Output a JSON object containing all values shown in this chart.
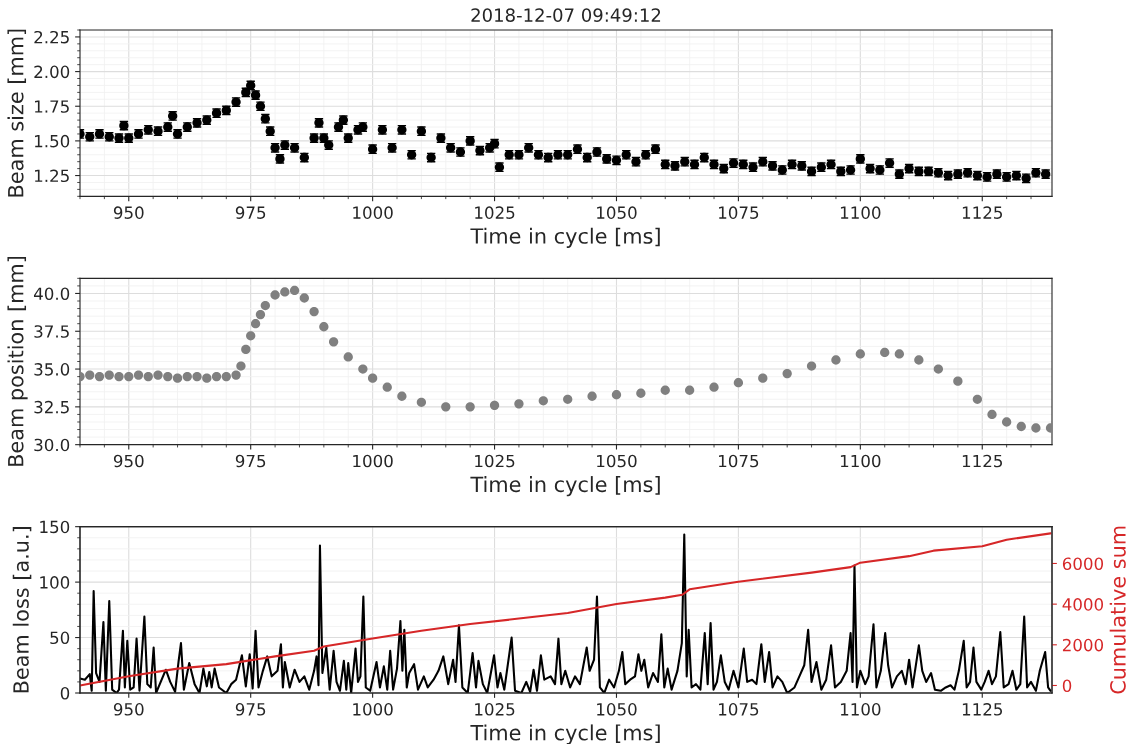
{
  "chart_data": [
    {
      "type": "scatter",
      "title": "2018-12-07 09:49:12",
      "xlabel": "Time in cycle [ms]",
      "ylabel": "Beam size [mm]",
      "xlim": [
        940,
        1139.3
      ],
      "ylim": [
        1.1,
        2.3
      ],
      "xticks": [
        950,
        975,
        1000,
        1025,
        1050,
        1075,
        1100,
        1125
      ],
      "yticks": [
        1.25,
        {
          "value": 1.5,
          "label": "1.50"
        },
        1.75,
        {
          "value": 2,
          "label": "2.00"
        },
        2.25
      ],
      "grid": true,
      "marker": "circle",
      "series": [
        {
          "color": "#000000",
          "x": [
            940,
            942,
            944,
            946,
            948,
            949,
            950,
            952,
            954,
            956,
            958,
            959,
            960,
            962,
            964,
            966,
            968,
            970,
            972,
            974,
            975,
            976,
            977,
            978,
            979,
            980,
            981,
            982,
            984,
            986,
            988,
            989,
            990,
            991,
            993,
            994,
            995,
            997,
            998,
            1000,
            1002,
            1004,
            1006,
            1008,
            1010,
            1012,
            1014,
            1016,
            1018,
            1020,
            1022,
            1024,
            1025,
            1026,
            1028,
            1030,
            1032,
            1034,
            1036,
            1038,
            1040,
            1042,
            1044,
            1046,
            1048,
            1050,
            1052,
            1054,
            1056,
            1058,
            1060,
            1062,
            1064,
            1066,
            1068,
            1070,
            1072,
            1074,
            1076,
            1078,
            1080,
            1082,
            1084,
            1086,
            1088,
            1090,
            1092,
            1094,
            1096,
            1098,
            1100,
            1102,
            1104,
            1106,
            1108,
            1110,
            1112,
            1114,
            1116,
            1118,
            1120,
            1122,
            1124,
            1126,
            1128,
            1130,
            1132,
            1134,
            1136,
            1138
          ],
          "values": [
            1.55,
            1.53,
            1.55,
            1.53,
            1.52,
            1.61,
            1.52,
            1.55,
            1.58,
            1.57,
            1.6,
            1.68,
            1.55,
            1.6,
            1.63,
            1.65,
            1.7,
            1.72,
            1.78,
            1.85,
            1.9,
            1.83,
            1.75,
            1.66,
            1.57,
            1.45,
            1.37,
            1.47,
            1.45,
            1.38,
            1.52,
            1.63,
            1.52,
            1.47,
            1.6,
            1.65,
            1.52,
            1.58,
            1.6,
            1.44,
            1.58,
            1.45,
            1.58,
            1.4,
            1.57,
            1.38,
            1.52,
            1.45,
            1.42,
            1.5,
            1.43,
            1.45,
            1.48,
            1.31,
            1.4,
            1.4,
            1.45,
            1.4,
            1.38,
            1.4,
            1.4,
            1.44,
            1.38,
            1.42,
            1.37,
            1.36,
            1.4,
            1.35,
            1.4,
            1.44,
            1.33,
            1.32,
            1.35,
            1.33,
            1.38,
            1.33,
            1.3,
            1.34,
            1.33,
            1.31,
            1.35,
            1.32,
            1.29,
            1.33,
            1.32,
            1.28,
            1.31,
            1.33,
            1.28,
            1.29,
            1.37,
            1.3,
            1.29,
            1.34,
            1.26,
            1.3,
            1.28,
            1.28,
            1.27,
            1.25,
            1.26,
            1.27,
            1.25,
            1.24,
            1.26,
            1.24,
            1.25,
            1.23,
            1.27,
            1.26
          ],
          "errors": [
            0.03,
            0.03,
            0.03,
            0.03,
            0.03,
            0.03,
            0.03,
            0.03,
            0.03,
            0.03,
            0.03,
            0.03,
            0.03,
            0.03,
            0.03,
            0.03,
            0.03,
            0.03,
            0.03,
            0.03,
            0.03,
            0.03,
            0.03,
            0.03,
            0.03,
            0.03,
            0.03,
            0.03,
            0.03,
            0.03,
            0.03,
            0.03,
            0.03,
            0.03,
            0.03,
            0.03,
            0.03,
            0.03,
            0.03,
            0.03,
            0.03,
            0.03,
            0.03,
            0.03,
            0.03,
            0.03,
            0.03,
            0.03,
            0.03,
            0.03,
            0.03,
            0.03,
            0.03,
            0.03,
            0.03,
            0.03,
            0.03,
            0.03,
            0.03,
            0.03,
            0.03,
            0.03,
            0.03,
            0.03,
            0.03,
            0.03,
            0.03,
            0.03,
            0.03,
            0.03,
            0.03,
            0.03,
            0.03,
            0.03,
            0.03,
            0.03,
            0.03,
            0.03,
            0.03,
            0.03,
            0.03,
            0.03,
            0.03,
            0.03,
            0.03,
            0.03,
            0.03,
            0.03,
            0.03,
            0.03,
            0.03,
            0.03,
            0.03,
            0.03,
            0.03,
            0.03,
            0.03,
            0.03,
            0.03,
            0.03,
            0.03,
            0.03,
            0.03,
            0.03,
            0.03,
            0.03,
            0.03,
            0.03,
            0.03,
            0.03
          ]
        }
      ]
    },
    {
      "type": "scatter",
      "xlabel": "Time in cycle [ms]",
      "ylabel": "Beam position [mm]",
      "xlim": [
        940,
        1139.3
      ],
      "ylim": [
        30,
        41
      ],
      "xticks": [
        950,
        975,
        1000,
        1025,
        1050,
        1075,
        1100,
        1125
      ],
      "yticks": [
        {
          "value": 30,
          "label": "30.0"
        },
        32.5,
        {
          "value": 35,
          "label": "35.0"
        },
        37.5,
        {
          "value": 40,
          "label": "40.0"
        }
      ],
      "grid": true,
      "marker": "circle",
      "series": [
        {
          "color": "#808080",
          "x": [
            940,
            942,
            944,
            946,
            948,
            950,
            952,
            954,
            956,
            958,
            960,
            962,
            964,
            966,
            968,
            970,
            972,
            973,
            974,
            975,
            976,
            977,
            978,
            980,
            982,
            984,
            986,
            988,
            990,
            992,
            995,
            998,
            1000,
            1003,
            1006,
            1010,
            1015,
            1020,
            1025,
            1030,
            1035,
            1040,
            1045,
            1050,
            1055,
            1060,
            1065,
            1070,
            1075,
            1080,
            1085,
            1090,
            1095,
            1100,
            1105,
            1108,
            1112,
            1116,
            1120,
            1124,
            1127,
            1130,
            1133,
            1136,
            1139
          ],
          "values": [
            34.5,
            34.6,
            34.5,
            34.6,
            34.5,
            34.5,
            34.6,
            34.5,
            34.6,
            34.5,
            34.4,
            34.5,
            34.5,
            34.4,
            34.5,
            34.5,
            34.6,
            35.2,
            36.3,
            37.2,
            38.0,
            38.6,
            39.2,
            39.9,
            40.1,
            40.2,
            39.7,
            38.8,
            37.8,
            36.8,
            35.8,
            35.0,
            34.4,
            33.8,
            33.2,
            32.8,
            32.5,
            32.5,
            32.6,
            32.7,
            32.9,
            33.0,
            33.2,
            33.3,
            33.4,
            33.6,
            33.6,
            33.8,
            34.1,
            34.4,
            34.7,
            35.2,
            35.6,
            36.0,
            36.1,
            36.0,
            35.6,
            35.0,
            34.2,
            33.0,
            32.0,
            31.5,
            31.2,
            31.1,
            31.1
          ]
        }
      ]
    },
    {
      "type": "line",
      "xlabel": "Time in cycle [ms]",
      "ylabel": "Beam loss [a.u.]",
      "y2label": "Cumulative sum",
      "xlim": [
        940,
        1139.3
      ],
      "ylim": [
        0,
        150
      ],
      "y2lim": [
        -370,
        7810
      ],
      "xticks": [
        950,
        975,
        1000,
        1025,
        1050,
        1075,
        1100,
        1125
      ],
      "yticks": [
        0,
        50,
        100,
        150
      ],
      "y2ticks": [
        0,
        2000,
        4000,
        6000
      ],
      "grid": true,
      "series": [
        {
          "color": "#000000",
          "x": [
            940,
            941,
            942,
            942.4,
            942.8,
            943.3,
            944,
            944.8,
            945.3,
            946,
            946.6,
            947.5,
            948,
            948.8,
            949.2,
            949.7,
            950.3,
            951,
            951.6,
            952.2,
            953.2,
            953.8,
            954.5,
            955.1,
            955.6,
            957.6,
            958.5,
            959.5,
            960.2,
            960.7,
            961.3,
            962.4,
            963.5,
            964.5,
            965.3,
            966,
            966.5,
            967,
            967.6,
            968.5,
            970,
            971,
            972,
            973.2,
            974,
            974.8,
            975.4,
            976,
            976.6,
            977.5,
            978.4,
            979.3,
            980.5,
            981.2,
            981.6,
            982,
            983,
            984,
            985,
            986,
            987,
            988,
            988.5,
            988.9,
            989.2,
            989.7,
            990.5,
            991.2,
            992,
            992.6,
            993.3,
            994.1,
            994.6,
            995,
            995.6,
            996.5,
            997,
            997.5,
            998.1,
            998.6,
            999.5,
            1000.8,
            1001.5,
            1002.3,
            1003,
            1003.6,
            1004.2,
            1005,
            1005.7,
            1006.1,
            1006.5,
            1007,
            1007.5,
            1008.5,
            1009.3,
            1010.5,
            1011.3,
            1012.5,
            1013.5,
            1014.5,
            1015.5,
            1016.5,
            1017,
            1017.7,
            1018.4,
            1019.5,
            1020.5,
            1021.2,
            1021.7,
            1022.6,
            1023.5,
            1024.9,
            1025.6,
            1026.2,
            1027,
            1028.5,
            1029.2,
            1030.5,
            1031.5,
            1032.3,
            1033,
            1033.7,
            1034.5,
            1035.2,
            1036.5,
            1037.4,
            1038.1,
            1038.7,
            1039.5,
            1040.5,
            1041.5,
            1042.5,
            1043.9,
            1044.5,
            1045.4,
            1046,
            1046.6,
            1047.5,
            1048.5,
            1049.5,
            1050.5,
            1051.2,
            1051.8,
            1052.8,
            1053.8,
            1054.5,
            1055.1,
            1055.7,
            1056.5,
            1057.5,
            1058.5,
            1059.2,
            1059.8,
            1060.5,
            1061.3,
            1062.5,
            1063.4,
            1063.9,
            1064.4,
            1064.8,
            1065.4,
            1066.3,
            1067.2,
            1068.1,
            1068.7,
            1069.3,
            1069.9,
            1070.6,
            1071.4,
            1072.2,
            1073,
            1074,
            1075,
            1076.1,
            1076.8,
            1077.8,
            1078.7,
            1079.7,
            1080.4,
            1081.3,
            1082,
            1083,
            1084,
            1085,
            1086.5,
            1087.5,
            1088.5,
            1089.3,
            1090,
            1091,
            1092,
            1093,
            1094,
            1094.8,
            1096,
            1097.2,
            1098,
            1098.4,
            1098.8,
            1099.3,
            1100,
            1101,
            1101.7,
            1102.7,
            1103.3,
            1104.2,
            1105.1,
            1105.7,
            1106.5,
            1107.5,
            1108.5,
            1109.3,
            1110,
            1110.7,
            1112,
            1112.7,
            1113.5,
            1114.5,
            1115.3,
            1116.5,
            1117.5,
            1118.5,
            1119.3,
            1120.2,
            1121.2,
            1121.8,
            1122.5,
            1123.2,
            1123.8,
            1124.8,
            1125.5,
            1126.3,
            1127,
            1127.8,
            1128.7,
            1129.4,
            1130.4,
            1131.2,
            1132,
            1132.8,
            1133.6,
            1134.2,
            1135,
            1136,
            1136.8,
            1137.9,
            1138.5,
            1139
          ],
          "values": [
            13,
            12,
            17,
            2,
            92,
            18,
            10,
            64,
            2,
            83,
            3,
            0,
            3,
            56,
            5,
            47,
            3,
            5,
            49,
            2,
            69,
            8,
            5,
            41,
            0,
            21,
            10,
            1,
            28,
            45,
            3,
            27,
            8,
            0,
            22,
            6,
            19,
            5,
            22,
            5,
            0,
            8,
            12,
            34,
            6,
            35,
            4,
            56,
            5,
            20,
            33,
            15,
            20,
            44,
            5,
            28,
            5,
            21,
            10,
            15,
            3,
            20,
            33,
            7,
            133,
            18,
            41,
            3,
            38,
            10,
            2,
            29,
            3,
            27,
            0,
            40,
            10,
            15,
            87,
            5,
            2,
            28,
            5,
            24,
            3,
            38,
            3,
            22,
            65,
            20,
            57,
            5,
            18,
            26,
            3,
            15,
            5,
            12,
            20,
            33,
            8,
            30,
            10,
            61,
            5,
            0,
            36,
            5,
            29,
            8,
            0,
            34,
            5,
            18,
            3,
            50,
            2,
            0,
            10,
            1,
            21,
            2,
            34,
            12,
            15,
            8,
            49,
            8,
            20,
            5,
            15,
            8,
            41,
            20,
            30,
            87,
            5,
            0,
            12,
            5,
            20,
            37,
            8,
            12,
            15,
            35,
            20,
            30,
            5,
            18,
            10,
            53,
            5,
            22,
            3,
            20,
            45,
            143,
            15,
            57,
            5,
            8,
            3,
            54,
            8,
            63,
            3,
            10,
            34,
            10,
            3,
            20,
            5,
            40,
            10,
            12,
            8,
            44,
            10,
            37,
            5,
            15,
            10,
            0,
            5,
            15,
            25,
            57,
            10,
            28,
            3,
            12,
            43,
            5,
            10,
            20,
            54,
            10,
            115,
            5,
            20,
            8,
            15,
            62,
            5,
            20,
            54,
            25,
            5,
            15,
            20,
            8,
            30,
            5,
            43,
            20,
            10,
            18,
            3,
            2,
            5,
            7,
            3,
            20,
            47,
            5,
            10,
            41,
            10,
            3,
            10,
            20,
            8,
            15,
            55,
            5,
            8,
            20,
            3,
            8,
            69,
            5,
            10,
            2,
            20,
            37,
            5,
            2
          ]
        },
        {
          "color": "#d62728",
          "axis": "y2",
          "x": [
            940,
            950,
            960,
            970,
            980,
            988,
            990,
            1000,
            1010,
            1020,
            1030,
            1040,
            1050,
            1060,
            1063.5,
            1065,
            1075,
            1090,
            1098,
            1100,
            1110,
            1115,
            1125,
            1130,
            1139
          ],
          "values": [
            0,
            450,
            830,
            1050,
            1430,
            1710,
            1920,
            2310,
            2690,
            3020,
            3290,
            3560,
            4010,
            4320,
            4460,
            4730,
            5100,
            5550,
            5820,
            6040,
            6360,
            6630,
            6850,
            7170,
            7480
          ]
        }
      ]
    }
  ]
}
